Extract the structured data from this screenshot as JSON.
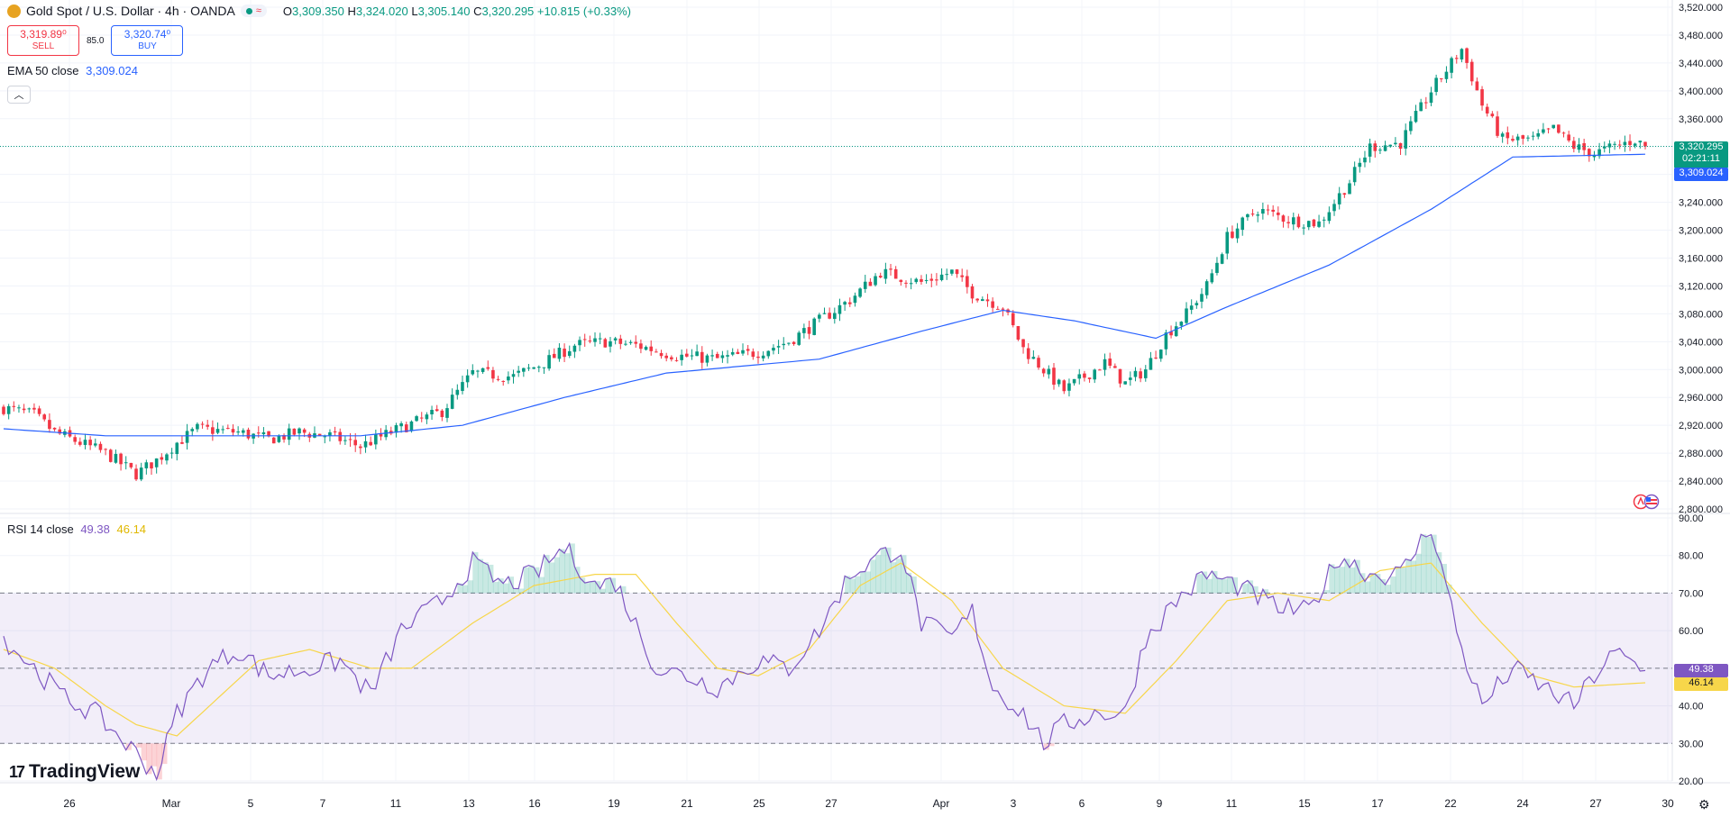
{
  "header": {
    "title": "Gold Spot / U.S. Dollar · 4h · OANDA",
    "ohlc": {
      "o_label": "O",
      "o": "3,309.350",
      "h_label": "H",
      "h": "3,324.020",
      "l_label": "L",
      "l": "3,305.140",
      "c_label": "C",
      "c": "3,320.295",
      "change": "+10.815 (+0.33%)"
    },
    "status_icon": "≈"
  },
  "trade": {
    "sell_price": "3,319.89⁰",
    "sell_label": "SELL",
    "spread": "85.0",
    "buy_price": "3,320.74⁰",
    "buy_label": "BUY"
  },
  "ema": {
    "label": "EMA 50 close",
    "value": "3,309.024"
  },
  "rsi": {
    "label": "RSI 14 close",
    "value": "49.38",
    "ma": "46.14"
  },
  "tags": {
    "price": "3,320.295",
    "countdown": "02:21:11",
    "ema": "3,309.024",
    "rsi": "49.38",
    "rsi_ma": "46.14"
  },
  "brand": "TradingView",
  "colors": {
    "up": "#089981",
    "down": "#f23645",
    "ema": "#2962ff",
    "rsi": "#7e57c2",
    "rsi_ma": "#f7d64a"
  },
  "chart_data": [
    {
      "type": "candlestick",
      "title": "Gold Spot / U.S. Dollar 4h",
      "y_ticks": [
        "3,520.000",
        "3,480.000",
        "3,440.000",
        "3,400.000",
        "3,360.000",
        "3,320.000",
        "3,280.000",
        "3,240.000",
        "3,200.000",
        "3,160.000",
        "3,120.000",
        "3,080.000",
        "3,040.000",
        "3,000.000",
        "2,960.000",
        "2,920.000",
        "2,880.000",
        "2,840.000",
        "2,800.000"
      ],
      "ylim": [
        2800,
        3520
      ],
      "x_ticks": [
        "26",
        "Mar",
        "5",
        "7",
        "11",
        "13",
        "16",
        "19",
        "21",
        "25",
        "27",
        "Apr",
        "3",
        "6",
        "9",
        "11",
        "15",
        "17",
        "22",
        "24",
        "27",
        "30"
      ],
      "close_anchors": [
        [
          0,
          2945
        ],
        [
          6,
          2935
        ],
        [
          10,
          2910
        ],
        [
          20,
          2880
        ],
        [
          26,
          2850
        ],
        [
          30,
          2870
        ],
        [
          34,
          2895
        ],
        [
          38,
          2915
        ],
        [
          46,
          2910
        ],
        [
          52,
          2900
        ],
        [
          58,
          2910
        ],
        [
          64,
          2905
        ],
        [
          70,
          2890
        ],
        [
          76,
          2910
        ],
        [
          86,
          2940
        ],
        [
          92,
          2995
        ],
        [
          100,
          2990
        ],
        [
          106,
          3010
        ],
        [
          112,
          3035
        ],
        [
          118,
          3040
        ],
        [
          124,
          3035
        ],
        [
          132,
          3020
        ],
        [
          140,
          3015
        ],
        [
          148,
          3025
        ],
        [
          154,
          3040
        ],
        [
          160,
          3070
        ],
        [
          166,
          3100
        ],
        [
          172,
          3140
        ],
        [
          180,
          3125
        ],
        [
          186,
          3140
        ],
        [
          190,
          3110
        ],
        [
          196,
          3090
        ],
        [
          200,
          3030
        ],
        [
          204,
          3000
        ],
        [
          208,
          2970
        ],
        [
          212,
          2990
        ],
        [
          216,
          3010
        ],
        [
          220,
          2980
        ],
        [
          224,
          3000
        ],
        [
          228,
          3050
        ],
        [
          232,
          3080
        ],
        [
          236,
          3120
        ],
        [
          240,
          3190
        ],
        [
          246,
          3230
        ],
        [
          252,
          3215
        ],
        [
          258,
          3210
        ],
        [
          264,
          3270
        ],
        [
          268,
          3320
        ],
        [
          274,
          3325
        ],
        [
          280,
          3400
        ],
        [
          286,
          3460
        ],
        [
          290,
          3380
        ],
        [
          294,
          3330
        ],
        [
          300,
          3330
        ],
        [
          304,
          3345
        ],
        [
          308,
          3320
        ],
        [
          312,
          3310
        ],
        [
          316,
          3320
        ],
        [
          320,
          3330
        ],
        [
          322,
          3320
        ]
      ],
      "ema_anchors": [
        [
          0,
          2915
        ],
        [
          20,
          2905
        ],
        [
          40,
          2905
        ],
        [
          70,
          2905
        ],
        [
          90,
          2920
        ],
        [
          110,
          2960
        ],
        [
          130,
          2995
        ],
        [
          160,
          3015
        ],
        [
          180,
          3055
        ],
        [
          196,
          3085
        ],
        [
          210,
          3070
        ],
        [
          226,
          3045
        ],
        [
          240,
          3090
        ],
        [
          260,
          3150
        ],
        [
          280,
          3230
        ],
        [
          296,
          3305
        ],
        [
          322,
          3309
        ]
      ],
      "last_price": 3320.295,
      "ema_last": 3309.024
    },
    {
      "type": "line",
      "title": "RSI 14 close",
      "y_ticks": [
        "90.00",
        "80.00",
        "70.00",
        "60.00",
        "50.00",
        "40.00",
        "30.00",
        "20.00"
      ],
      "ylim": [
        20,
        90
      ],
      "bands": [
        30,
        50,
        70
      ],
      "rsi_anchors": [
        [
          0,
          58
        ],
        [
          6,
          50
        ],
        [
          12,
          42
        ],
        [
          18,
          38
        ],
        [
          24,
          30
        ],
        [
          30,
          22
        ],
        [
          34,
          38
        ],
        [
          40,
          50
        ],
        [
          46,
          55
        ],
        [
          52,
          48
        ],
        [
          60,
          50
        ],
        [
          66,
          52
        ],
        [
          72,
          43
        ],
        [
          78,
          60
        ],
        [
          86,
          68
        ],
        [
          92,
          78
        ],
        [
          98,
          72
        ],
        [
          104,
          75
        ],
        [
          110,
          82
        ],
        [
          116,
          72
        ],
        [
          120,
          73
        ],
        [
          128,
          50
        ],
        [
          134,
          48
        ],
        [
          140,
          45
        ],
        [
          148,
          52
        ],
        [
          154,
          50
        ],
        [
          160,
          60
        ],
        [
          166,
          75
        ],
        [
          172,
          80
        ],
        [
          176,
          82
        ],
        [
          180,
          62
        ],
        [
          186,
          58
        ],
        [
          190,
          65
        ],
        [
          194,
          45
        ],
        [
          200,
          38
        ],
        [
          204,
          30
        ],
        [
          208,
          35
        ],
        [
          214,
          38
        ],
        [
          220,
          38
        ],
        [
          224,
          58
        ],
        [
          230,
          68
        ],
        [
          236,
          75
        ],
        [
          242,
          72
        ],
        [
          250,
          66
        ],
        [
          256,
          65
        ],
        [
          262,
          80
        ],
        [
          268,
          75
        ],
        [
          274,
          75
        ],
        [
          280,
          88
        ],
        [
          286,
          55
        ],
        [
          290,
          40
        ],
        [
          296,
          50
        ],
        [
          302,
          45
        ],
        [
          308,
          40
        ],
        [
          312,
          48
        ],
        [
          316,
          54
        ],
        [
          322,
          49.38
        ]
      ],
      "rsi_ma_anchors": [
        [
          0,
          55
        ],
        [
          10,
          50
        ],
        [
          20,
          40
        ],
        [
          26,
          35
        ],
        [
          34,
          32
        ],
        [
          42,
          42
        ],
        [
          50,
          52
        ],
        [
          60,
          55
        ],
        [
          72,
          50
        ],
        [
          80,
          50
        ],
        [
          92,
          62
        ],
        [
          104,
          72
        ],
        [
          116,
          75
        ],
        [
          124,
          75
        ],
        [
          132,
          62
        ],
        [
          140,
          50
        ],
        [
          148,
          48
        ],
        [
          158,
          55
        ],
        [
          168,
          72
        ],
        [
          176,
          78
        ],
        [
          186,
          68
        ],
        [
          196,
          50
        ],
        [
          208,
          40
        ],
        [
          220,
          38
        ],
        [
          230,
          52
        ],
        [
          240,
          68
        ],
        [
          250,
          70
        ],
        [
          260,
          68
        ],
        [
          270,
          76
        ],
        [
          280,
          78
        ],
        [
          290,
          62
        ],
        [
          300,
          48
        ],
        [
          308,
          45
        ],
        [
          322,
          46.14
        ]
      ]
    }
  ]
}
